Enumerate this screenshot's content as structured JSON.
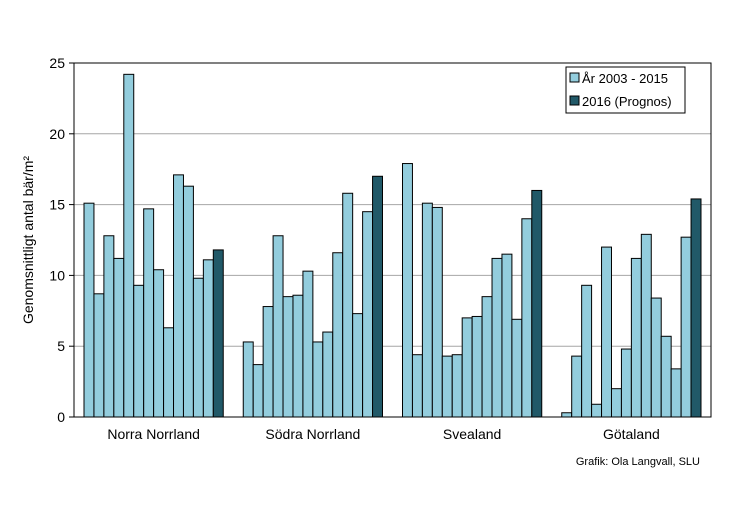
{
  "chart_data": {
    "type": "bar",
    "title": "",
    "xlabel": "",
    "ylabel": "Genomsnittligt antal bär/m²",
    "ylim": [
      0,
      25
    ],
    "yticks": [
      0,
      5,
      10,
      15,
      20,
      25
    ],
    "grid": true,
    "legend_position": "top-right",
    "series": [
      {
        "name": "År 2003 - 2015",
        "color": "#93cddd"
      },
      {
        "name": "2016 (Prognos)",
        "color": "#215968"
      }
    ],
    "groups": [
      {
        "label": "Norra Norrland",
        "values": [
          15.1,
          8.7,
          12.8,
          11.2,
          24.2,
          9.3,
          14.7,
          10.4,
          6.3,
          17.1,
          16.3,
          9.8,
          11.1
        ],
        "forecast": 11.8
      },
      {
        "label": "Södra Norrland",
        "values": [
          5.3,
          3.7,
          7.8,
          12.8,
          8.5,
          8.6,
          10.3,
          5.3,
          6.0,
          11.6,
          15.8,
          7.3,
          14.5
        ],
        "forecast": 17.0
      },
      {
        "label": "Svealand",
        "values": [
          17.9,
          4.4,
          15.1,
          14.8,
          4.3,
          4.4,
          7.0,
          7.1,
          8.5,
          11.2,
          11.5,
          6.9,
          14.0
        ],
        "forecast": 16.0
      },
      {
        "label": "Götaland",
        "values": [
          0.3,
          4.3,
          9.3,
          0.9,
          12.0,
          2.0,
          4.8,
          11.2,
          12.9,
          8.4,
          5.7,
          3.4,
          12.7
        ],
        "forecast": 15.4
      }
    ]
  },
  "credit": "Grafik: Ola Langvall, SLU"
}
